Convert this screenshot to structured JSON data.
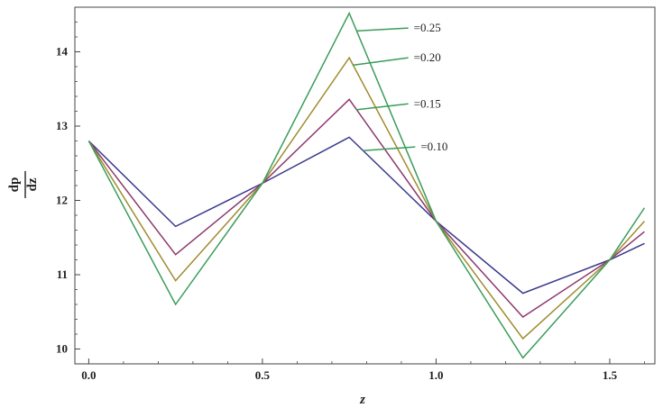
{
  "chart_data": {
    "type": "line",
    "x": [
      0.0,
      0.25,
      0.5,
      0.75,
      1.0,
      1.25,
      1.5,
      1.6
    ],
    "series": [
      {
        "name": "=0.10",
        "color": "#3a3a8c",
        "values": [
          12.8,
          11.65,
          12.23,
          12.85,
          11.72,
          10.75,
          11.2,
          11.42
        ]
      },
      {
        "name": "=0.15",
        "color": "#8c3a6e",
        "values": [
          12.8,
          11.27,
          12.23,
          13.36,
          11.72,
          10.43,
          11.2,
          11.58
        ]
      },
      {
        "name": "=0.20",
        "color": "#a08c30",
        "values": [
          12.8,
          10.92,
          12.23,
          13.92,
          11.72,
          10.14,
          11.2,
          11.72
        ]
      },
      {
        "name": "=0.25",
        "color": "#3a9c5a",
        "values": [
          12.8,
          10.6,
          12.23,
          14.52,
          11.72,
          9.88,
          11.2,
          11.9
        ]
      }
    ],
    "xlabel": "z",
    "ylabel_top": "dp",
    "ylabel_bottom": "dz",
    "xlim": [
      -0.04,
      1.63
    ],
    "ylim": [
      9.8,
      14.6
    ],
    "xticks": [
      {
        "value": 0.0,
        "label": "0.0"
      },
      {
        "value": 0.5,
        "label": "0.5"
      },
      {
        "value": 1.0,
        "label": "1.0"
      },
      {
        "value": 1.5,
        "label": "1.5"
      }
    ],
    "yticks": [
      {
        "value": 10,
        "label": "10"
      },
      {
        "value": 11,
        "label": "11"
      },
      {
        "value": 12,
        "label": "12"
      },
      {
        "value": 13,
        "label": "13"
      },
      {
        "value": 14,
        "label": "14"
      }
    ],
    "annotations": [
      {
        "text": "=0.25",
        "tip_x": 0.77,
        "tip_y": 14.28,
        "end_x": 0.92,
        "end_y": 14.32
      },
      {
        "text": "=0.20",
        "tip_x": 0.76,
        "tip_y": 13.82,
        "end_x": 0.92,
        "end_y": 13.92
      },
      {
        "text": "=0.15",
        "tip_x": 0.77,
        "tip_y": 13.22,
        "end_x": 0.92,
        "end_y": 13.3
      },
      {
        "text": "=0.10",
        "tip_x": 0.79,
        "tip_y": 12.67,
        "end_x": 0.94,
        "end_y": 12.72
      }
    ],
    "grid": false,
    "legend": "none"
  }
}
